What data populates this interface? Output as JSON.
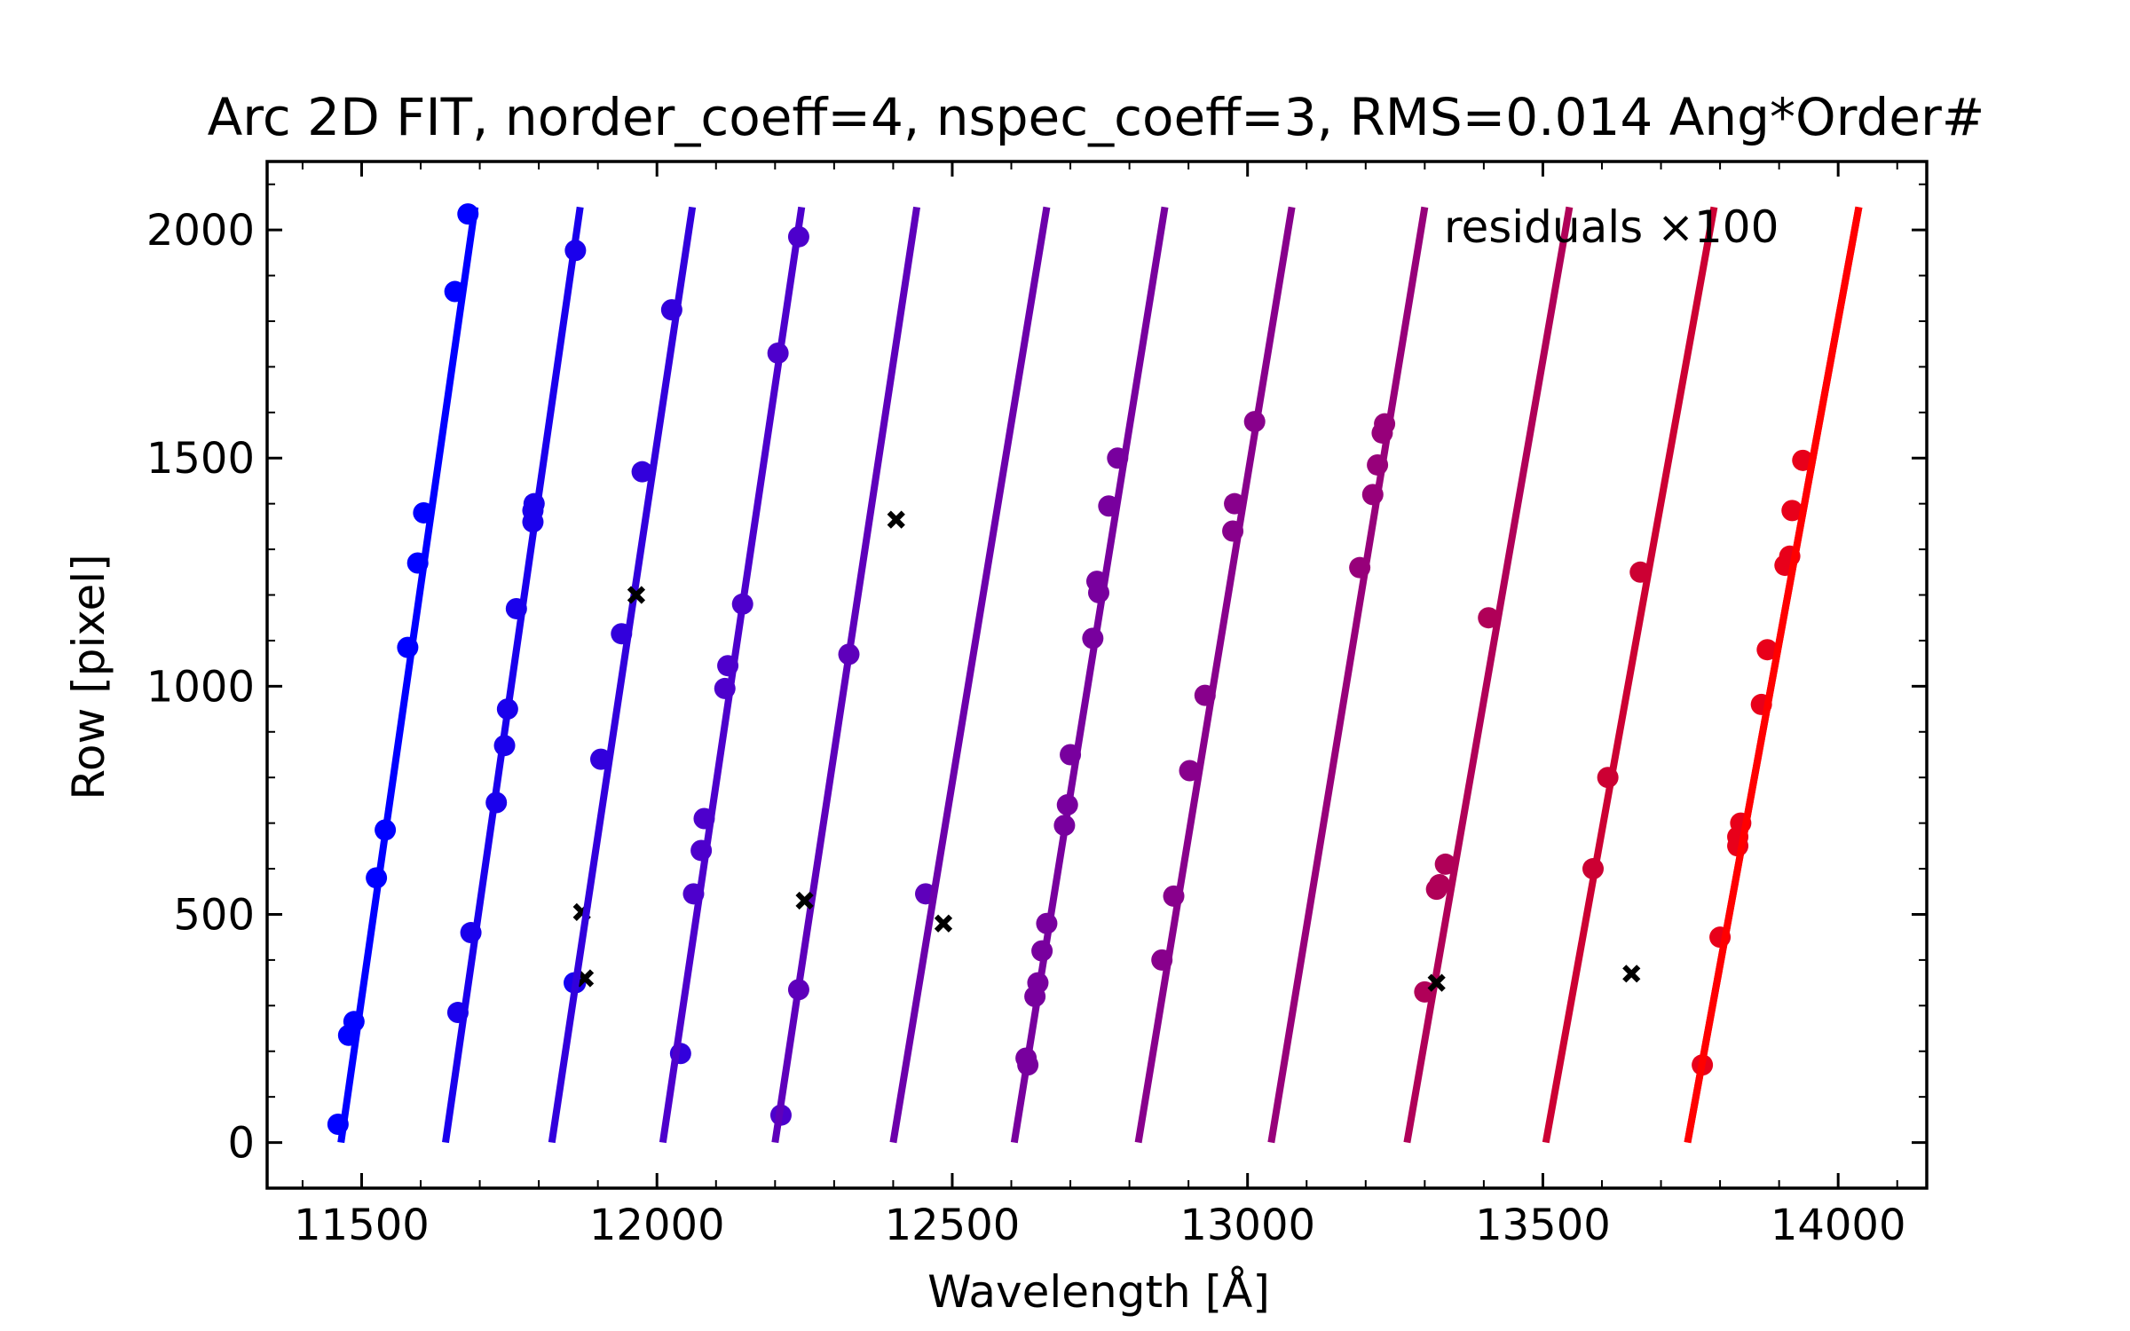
{
  "chart_data": {
    "type": "line",
    "title": "Arc 2D FIT, norder_coeff=4, nspec_coeff=3, RMS=0.014 Ang*Order#",
    "xlabel": "Wavelength [Å]",
    "ylabel": "Row [pixel]",
    "xlim": [
      11340,
      14150
    ],
    "ylim": [
      -100,
      2150
    ],
    "xticks": [
      11500,
      12000,
      12500,
      13000,
      13500,
      14000
    ],
    "yticks": [
      0,
      500,
      1000,
      1500,
      2000
    ],
    "annotation": "residuals ×100",
    "grid": false,
    "series": [
      {
        "color": "#0000ff",
        "line": [
          [
            11465,
            0
          ],
          [
            11692,
            2050
          ]
        ],
        "points": [
          [
            11460,
            40
          ],
          [
            11478,
            235
          ],
          [
            11487,
            265
          ],
          [
            11525,
            580
          ],
          [
            11540,
            685
          ],
          [
            11578,
            1085
          ],
          [
            11595,
            1270
          ],
          [
            11605,
            1380
          ],
          [
            11658,
            1865
          ],
          [
            11680,
            2035
          ],
          [
            11860,
            350
          ]
        ],
        "residuals": []
      },
      {
        "color": "#1a00ec",
        "line": [
          [
            11642,
            0
          ],
          [
            11870,
            2050
          ]
        ],
        "points": [
          [
            11663,
            285
          ],
          [
            11685,
            460
          ],
          [
            11728,
            745
          ],
          [
            11742,
            870
          ],
          [
            11747,
            950
          ],
          [
            11762,
            1170
          ],
          [
            11790,
            1360
          ],
          [
            11790,
            1385
          ],
          [
            11792,
            1400
          ],
          [
            11862,
            1955
          ],
          [
            11862,
            350
          ]
        ],
        "residuals": [
          [
            11873,
            505
          ],
          [
            11878,
            360
          ]
        ]
      },
      {
        "color": "#3200dc",
        "line": [
          [
            11822,
            0
          ],
          [
            12060,
            2050
          ]
        ],
        "points": [
          [
            11905,
            840
          ],
          [
            11940,
            1115
          ],
          [
            11975,
            1470
          ],
          [
            12025,
            1825
          ],
          [
            12040,
            195
          ]
        ],
        "residuals": [
          [
            11965,
            1200
          ]
        ]
      },
      {
        "color": "#4d00cc",
        "line": [
          [
            12010,
            0
          ],
          [
            12245,
            2050
          ]
        ],
        "points": [
          [
            12062,
            545
          ],
          [
            12075,
            640
          ],
          [
            12080,
            710
          ],
          [
            12115,
            995
          ],
          [
            12120,
            1045
          ],
          [
            12145,
            1180
          ],
          [
            12205,
            1730
          ],
          [
            12240,
            1985
          ],
          [
            12210,
            60
          ]
        ],
        "residuals": []
      },
      {
        "color": "#5e00bb",
        "line": [
          [
            12200,
            0
          ],
          [
            12440,
            2050
          ]
        ],
        "points": [
          [
            12240,
            335
          ],
          [
            12325,
            1070
          ],
          [
            12455,
            545
          ]
        ],
        "residuals": [
          [
            12250,
            530
          ],
          [
            12405,
            1365
          ],
          [
            12485,
            480
          ]
        ]
      },
      {
        "color": "#6c00ab",
        "line": [
          [
            12400,
            0
          ],
          [
            12660,
            2050
          ]
        ],
        "points": [],
        "residuals": []
      },
      {
        "color": "#78009e",
        "line": [
          [
            12605,
            0
          ],
          [
            12860,
            2050
          ]
        ],
        "points": [
          [
            12625,
            185
          ],
          [
            12628,
            170
          ],
          [
            12640,
            320
          ],
          [
            12645,
            350
          ],
          [
            12652,
            420
          ],
          [
            12660,
            480
          ],
          [
            12690,
            695
          ],
          [
            12695,
            740
          ],
          [
            12700,
            850
          ],
          [
            12738,
            1105
          ],
          [
            12745,
            1230
          ],
          [
            12748,
            1205
          ],
          [
            12765,
            1395
          ],
          [
            12780,
            1500
          ]
        ],
        "residuals": []
      },
      {
        "color": "#88008c",
        "line": [
          [
            12815,
            0
          ],
          [
            13075,
            2050
          ]
        ],
        "points": [
          [
            12855,
            400
          ],
          [
            12875,
            540
          ],
          [
            12902,
            815
          ],
          [
            12928,
            980
          ],
          [
            12975,
            1340
          ],
          [
            12978,
            1400
          ],
          [
            13012,
            1580
          ]
        ],
        "residuals": []
      },
      {
        "color": "#97007a",
        "line": [
          [
            13040,
            0
          ],
          [
            13300,
            2050
          ]
        ],
        "points": [
          [
            13190,
            1260
          ],
          [
            13212,
            1420
          ],
          [
            13220,
            1485
          ],
          [
            13228,
            1555
          ],
          [
            13232,
            1575
          ]
        ],
        "residuals": []
      },
      {
        "color": "#b00058",
        "line": [
          [
            13270,
            0
          ],
          [
            13545,
            2050
          ]
        ],
        "points": [
          [
            13300,
            330
          ],
          [
            13320,
            555
          ],
          [
            13325,
            565
          ],
          [
            13335,
            610
          ],
          [
            13408,
            1150
          ]
        ],
        "residuals": [
          [
            13320,
            350
          ]
        ]
      },
      {
        "color": "#cc0033",
        "line": [
          [
            13505,
            0
          ],
          [
            13790,
            2050
          ]
        ],
        "points": [
          [
            13585,
            600
          ],
          [
            13610,
            800
          ],
          [
            13665,
            1250
          ]
        ],
        "residuals": [
          [
            13650,
            370
          ]
        ]
      },
      {
        "color": "#e8001a",
        "line": [
          [
            13745,
            0
          ],
          [
            14035,
            2050
          ]
        ],
        "points": [
          [
            13770,
            170
          ],
          [
            13800,
            450
          ],
          [
            13830,
            650
          ],
          [
            13830,
            670
          ],
          [
            13835,
            700
          ],
          [
            13870,
            960
          ],
          [
            13880,
            1080
          ],
          [
            13910,
            1265
          ],
          [
            13918,
            1285
          ],
          [
            13922,
            1385
          ],
          [
            13940,
            1495
          ]
        ],
        "residuals": []
      },
      {
        "color": "#ff0000",
        "line": [
          [
            13745,
            0
          ],
          [
            14035,
            2050
          ]
        ],
        "points": [],
        "residuals": []
      }
    ]
  }
}
